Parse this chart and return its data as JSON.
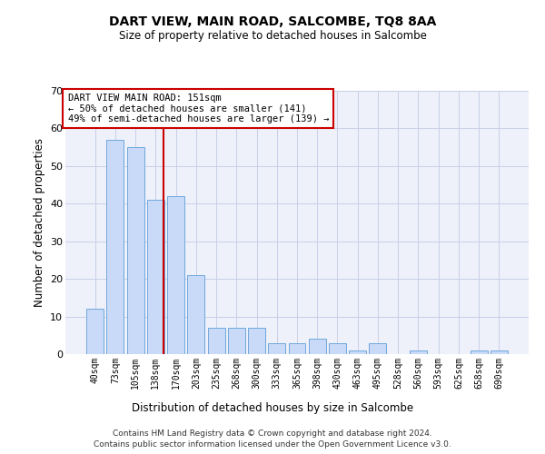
{
  "title": "DART VIEW, MAIN ROAD, SALCOMBE, TQ8 8AA",
  "subtitle": "Size of property relative to detached houses in Salcombe",
  "xlabel": "Distribution of detached houses by size in Salcombe",
  "ylabel": "Number of detached properties",
  "bins": [
    "40sqm",
    "73sqm",
    "105sqm",
    "138sqm",
    "170sqm",
    "203sqm",
    "235sqm",
    "268sqm",
    "300sqm",
    "333sqm",
    "365sqm",
    "398sqm",
    "430sqm",
    "463sqm",
    "495sqm",
    "528sqm",
    "560sqm",
    "593sqm",
    "625sqm",
    "658sqm",
    "690sqm"
  ],
  "values": [
    12,
    57,
    55,
    41,
    42,
    21,
    7,
    7,
    7,
    3,
    3,
    4,
    3,
    1,
    3,
    0,
    1,
    0,
    0,
    1,
    1
  ],
  "bar_color": "#c9daf8",
  "bar_edge_color": "#6fa8dc",
  "annotation_line1": "DART VIEW MAIN ROAD: 151sqm",
  "annotation_line2": "← 50% of detached houses are smaller (141)",
  "annotation_line3": "49% of semi-detached houses are larger (139) →",
  "vline_color": "#cc0000",
  "ylim_max": 70,
  "yticks": [
    0,
    10,
    20,
    30,
    40,
    50,
    60,
    70
  ],
  "bg_color": "#eef1fa",
  "grid_color": "#c8cfe8",
  "footer_line1": "Contains HM Land Registry data © Crown copyright and database right 2024.",
  "footer_line2": "Contains public sector information licensed under the Open Government Licence v3.0."
}
